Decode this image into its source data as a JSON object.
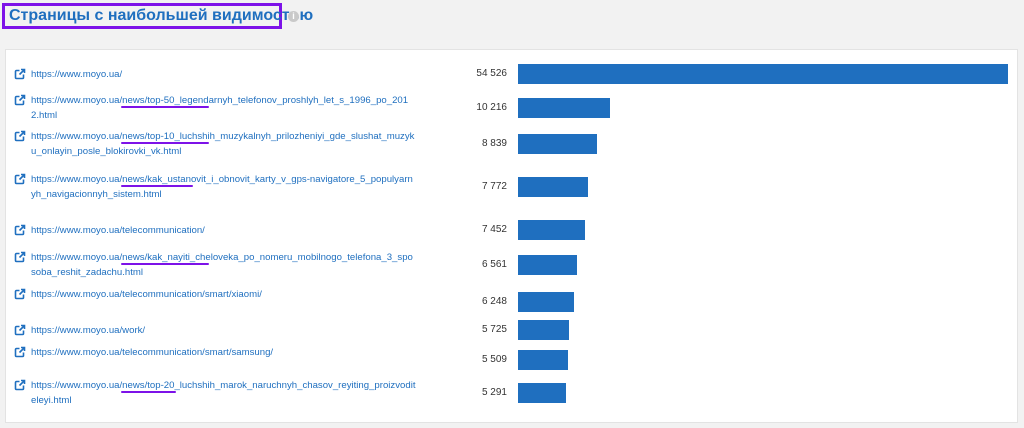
{
  "header": {
    "title": "Страницы с наибольшей видимостью",
    "info_icon": "info-icon"
  },
  "colors": {
    "accent": "#1f6fbf",
    "highlight": "#7d12e8"
  },
  "chart_data": {
    "type": "bar",
    "orientation": "horizontal",
    "categories": [
      "https://www.moyo.ua/",
      "https://www.moyo.ua/news/top-50_legendarnyh_telefonov_proshlyh_let_s_1996_po_2012.html",
      "https://www.moyo.ua/news/top-10_luchshih_muzykalnyh_prilozheniyi_gde_slushat_muzyku_onlayin_posle_blokirovki_vk.html",
      "https://www.moyo.ua/news/kak_ustanovit_i_obnovit_karty_v_gps-navigatore_5_populyarnyh_navigacionnyh_sistem.html",
      "https://www.moyo.ua/telecommunication/",
      "https://www.moyo.ua/news/kak_nayiti_cheloveka_po_nomeru_mobilnogo_telefona_3_sposoba_reshit_zadachu.html",
      "https://www.moyo.ua/telecommunication/smart/xiaomi/",
      "https://www.moyo.ua/work/",
      "https://www.moyo.ua/telecommunication/smart/samsung/",
      "https://www.moyo.ua/news/top-20_luchshih_marok_naruchnyh_chasov_reyiting_proizvoditeleyi.html"
    ],
    "values": [
      54526,
      10216,
      8839,
      7772,
      7452,
      6561,
      6248,
      5725,
      5509,
      5291
    ],
    "value_labels": [
      "54 526",
      "10 216",
      "8 839",
      "7 772",
      "7 452",
      "6 561",
      "6 248",
      "5 725",
      "5 509",
      "5 291"
    ],
    "xlim": [
      0,
      54526
    ]
  }
}
